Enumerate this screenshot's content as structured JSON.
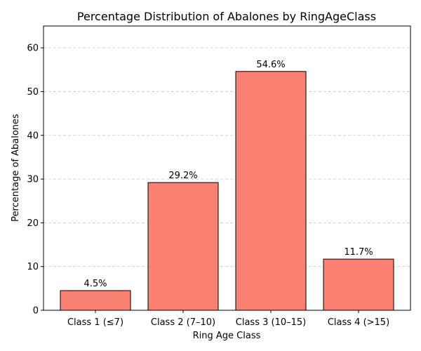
{
  "chart_data": {
    "type": "bar",
    "title": "Percentage Distribution of Abalones by RingAgeClass",
    "xlabel": "Ring Age Class",
    "ylabel": "Percentage of Abalones",
    "categories": [
      "Class 1 (≤7)",
      "Class 2 (7–10)",
      "Class 3 (10–15)",
      "Class 4 (>15)"
    ],
    "values": [
      4.5,
      29.2,
      54.6,
      11.7
    ],
    "data_labels": [
      "4.5%",
      "29.2%",
      "54.6%",
      "11.7%"
    ],
    "ylim": [
      0,
      65
    ],
    "yticks": [
      0,
      10,
      20,
      30,
      40,
      50,
      60
    ],
    "grid": "y-dashed",
    "colors": {
      "bar_fill": "#fa8072",
      "bar_edge": "#000000",
      "grid": "#cccccc"
    }
  }
}
